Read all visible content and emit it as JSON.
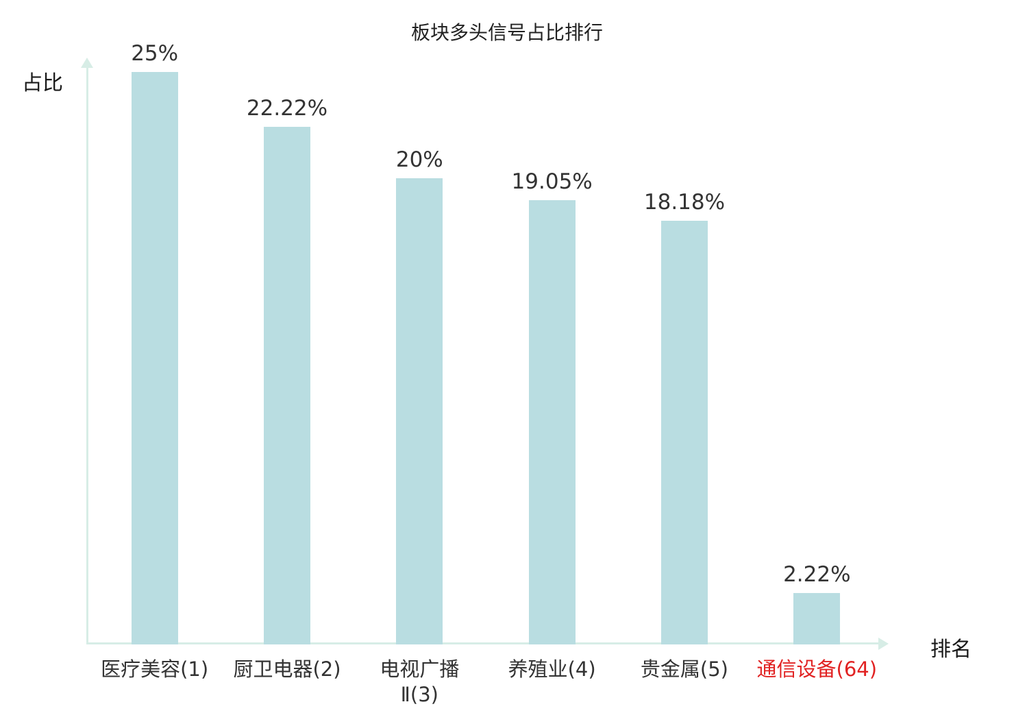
{
  "chart_data": {
    "type": "bar",
    "title": "板块多头信号占比排行",
    "xlabel": "排名",
    "ylabel": "占比",
    "categories": [
      "医疗美容(1)",
      "厨卫电器(2)",
      "电视广播\nⅡ(3)",
      "养殖业(4)",
      "贵金属(5)",
      "通信设备(64)"
    ],
    "values": [
      25,
      22.22,
      20,
      19.05,
      18.18,
      2.22
    ],
    "value_labels": [
      "25%",
      "22.22%",
      "20%",
      "19.05%",
      "18.18%",
      "2.22%"
    ],
    "category_colors": [
      "#333333",
      "#333333",
      "#333333",
      "#333333",
      "#333333",
      "#e12222"
    ],
    "ylim": [
      0,
      26
    ],
    "grid": false,
    "legend": false,
    "colors": {
      "bar": "#b9dde1",
      "axis": "#d7ede6",
      "text": "#333333",
      "highlight": "#e12222"
    }
  }
}
